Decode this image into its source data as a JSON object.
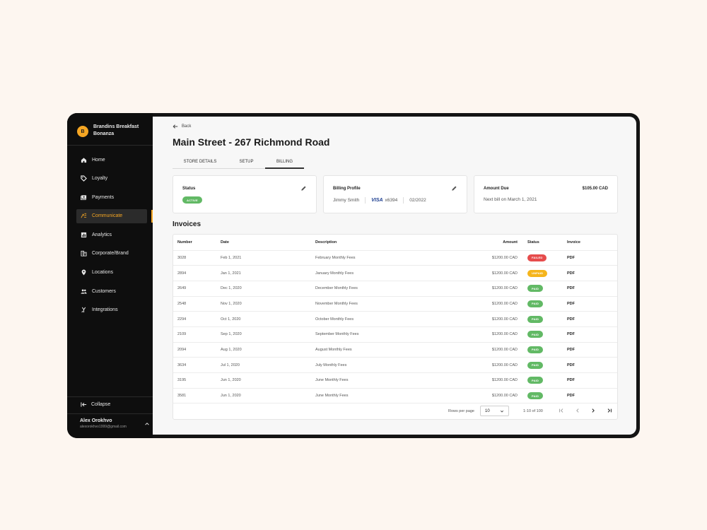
{
  "sidebar": {
    "brand_initial": "B",
    "brand_name": "Brandins Breakfast Bonanza",
    "items": [
      {
        "label": "Home",
        "icon": "home-icon"
      },
      {
        "label": "Loyalty",
        "icon": "tag-icon"
      },
      {
        "label": "Payments",
        "icon": "payments-icon"
      },
      {
        "label": "Communicate",
        "icon": "communicate-icon",
        "active": true
      },
      {
        "label": "Analytics",
        "icon": "analytics-icon"
      },
      {
        "label": "Corporate/Brand",
        "icon": "building-icon"
      },
      {
        "label": "Locations",
        "icon": "location-pin-icon"
      },
      {
        "label": "Customers",
        "icon": "people-icon"
      },
      {
        "label": "Integrations",
        "icon": "merge-icon"
      }
    ],
    "collapse_label": "Collapse",
    "user_name": "Alex Orokhvo",
    "user_email": "alexorokhvo1999@gmail.com"
  },
  "header": {
    "back_label": "Back",
    "title": "Main Street - 267 Richmond Road"
  },
  "tabs": [
    {
      "label": "STORE DETAILS"
    },
    {
      "label": "SETUP"
    },
    {
      "label": "BILLING",
      "active": true
    }
  ],
  "cards": {
    "status": {
      "title": "Status",
      "badge": "ACTIVE"
    },
    "billing_profile": {
      "title": "Billing Profile",
      "name": "Jimmy Smith",
      "card_brand": "VISA",
      "card_last4": "x6394",
      "expiry": "02/2022"
    },
    "amount_due": {
      "title": "Amount Due",
      "amount": "$105.00 CAD",
      "next_bill": "Next bill on March 1, 2021"
    }
  },
  "invoices": {
    "title": "Invoices",
    "columns": {
      "number": "Number",
      "date": "Date",
      "description": "Description",
      "amount": "Amount",
      "status": "Status",
      "invoice": "Invoice"
    },
    "rows": [
      {
        "number": "3028",
        "date": "Feb 1, 2021",
        "description": "February Monthly Fees",
        "amount": "$1200.00 CAD",
        "status": "FAILED",
        "invoice": "PDF"
      },
      {
        "number": "2894",
        "date": "Jan 1, 2021",
        "description": "January Monthly Fees",
        "amount": "$1200.00 CAD",
        "status": "UNPAID",
        "invoice": "PDF"
      },
      {
        "number": "2649",
        "date": "Dec 1, 2020",
        "description": "December Monthly Fees",
        "amount": "$1200.00 CAD",
        "status": "PAID",
        "invoice": "PDF"
      },
      {
        "number": "2548",
        "date": "Nov 1, 2020",
        "description": "November Monthly Fees",
        "amount": "$1200.00 CAD",
        "status": "PAID",
        "invoice": "PDF"
      },
      {
        "number": "2294",
        "date": "Oct 1, 2020",
        "description": "October Monthly Fees",
        "amount": "$1200.00 CAD",
        "status": "PAID",
        "invoice": "PDF"
      },
      {
        "number": "2109",
        "date": "Sep 1, 2020",
        "description": "September Monthly Fees",
        "amount": "$1200.00 CAD",
        "status": "PAID",
        "invoice": "PDF"
      },
      {
        "number": "2094",
        "date": "Aug 1, 2020",
        "description": "August Monthly Fees",
        "amount": "$1200.00 CAD",
        "status": "PAID",
        "invoice": "PDF"
      },
      {
        "number": "3634",
        "date": "Jul 1, 2020",
        "description": "July Monthly Fees",
        "amount": "$1200.00 CAD",
        "status": "PAID",
        "invoice": "PDF"
      },
      {
        "number": "3195",
        "date": "Jun 1, 2020",
        "description": "June Monthly Fees",
        "amount": "$1200.00 CAD",
        "status": "PAID",
        "invoice": "PDF"
      },
      {
        "number": "3581",
        "date": "Jun 1, 2020",
        "description": "June Monthly Fees",
        "amount": "$1200.00 CAD",
        "status": "PAID",
        "invoice": "PDF"
      }
    ],
    "pagination": {
      "rows_per_page_label": "Rows per page",
      "rows_per_page": "10",
      "range": "1-10 of 100"
    }
  },
  "colors": {
    "accent": "#f5a623",
    "paid": "#62b965",
    "failed": "#e64c4c",
    "unpaid": "#f5b51c"
  }
}
